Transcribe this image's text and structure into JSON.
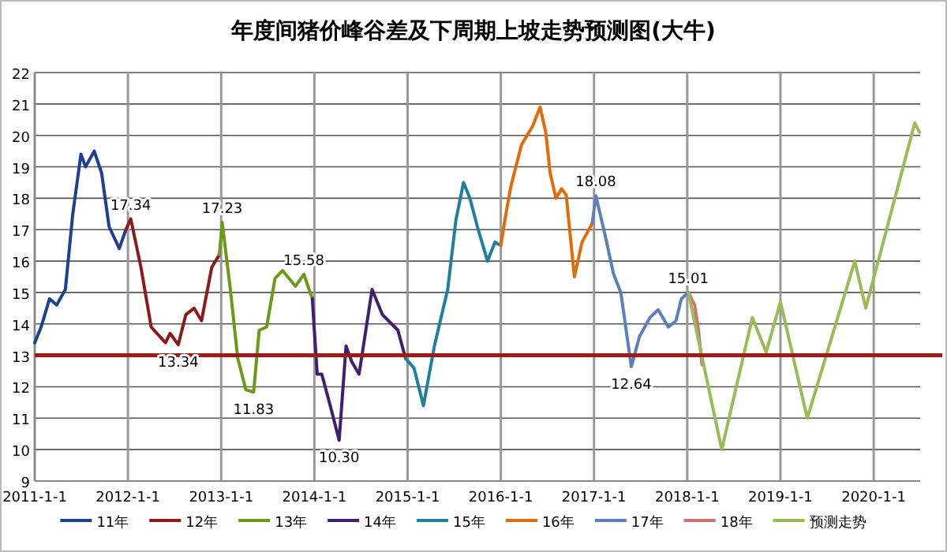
{
  "chart_data": {
    "type": "line",
    "title": "年度间猪价峰谷差及下周期上坡走势预测图(大牛)",
    "xlim": [
      "2011-01-01",
      "2020-07-01"
    ],
    "ylim": [
      9,
      22
    ],
    "xticks": [
      {
        "value": "2011-01-01",
        "label": "2011-1-1"
      },
      {
        "value": "2012-01-01",
        "label": "2012-1-1"
      },
      {
        "value": "2013-01-01",
        "label": "2013-1-1"
      },
      {
        "value": "2014-01-01",
        "label": "2014-1-1"
      },
      {
        "value": "2015-01-01",
        "label": "2015-1-1"
      },
      {
        "value": "2016-01-01",
        "label": "2016-1-1"
      },
      {
        "value": "2017-01-01",
        "label": "2017-1-1"
      },
      {
        "value": "2018-01-01",
        "label": "2018-1-1"
      },
      {
        "value": "2019-01-01",
        "label": "2019-1-1"
      },
      {
        "value": "2020-01-01",
        "label": "2020-1-1"
      }
    ],
    "yticks": [
      9,
      10,
      11,
      12,
      13,
      14,
      15,
      16,
      17,
      18,
      19,
      20,
      21,
      22
    ],
    "grid": true,
    "legend": "bottom",
    "marker": "none",
    "ref_lines": [
      {
        "axis": "y",
        "value": 13,
        "color": "#a01818"
      }
    ],
    "annotations": [
      {
        "text": "17.34",
        "x": "2012-01-12",
        "y": 17.34
      },
      {
        "text": "13.34",
        "x": "2012-07-16",
        "y": 13.34
      },
      {
        "text": "17.23",
        "x": "2013-01-05",
        "y": 17.23
      },
      {
        "text": "11.83",
        "x": "2013-05-08",
        "y": 11.83
      },
      {
        "text": "15.58",
        "x": "2013-11-21",
        "y": 15.58
      },
      {
        "text": "10.30",
        "x": "2014-04-08",
        "y": 10.3
      },
      {
        "text": "18.08",
        "x": "2017-01-08",
        "y": 18.08
      },
      {
        "text": "12.64",
        "x": "2017-05-27",
        "y": 12.64
      },
      {
        "text": "15.01",
        "x": "2018-01-05",
        "y": 15.01
      }
    ],
    "series": [
      {
        "name": "11年",
        "color": "#1f3f8f",
        "x": [
          "2011-01-01",
          "2011-01-26",
          "2011-02-28",
          "2011-03-28",
          "2011-05-01",
          "2011-05-30",
          "2011-07-01",
          "2011-07-19",
          "2011-08-22",
          "2011-09-20",
          "2011-10-19",
          "2011-11-28",
          "2011-12-24"
        ],
        "values": [
          13.4,
          13.9,
          14.8,
          14.6,
          15.1,
          17.5,
          19.4,
          19.0,
          19.5,
          18.8,
          17.1,
          16.4,
          17.0
        ]
      },
      {
        "name": "12年",
        "color": "#8b1a1a",
        "x": [
          "2011-12-24",
          "2012-01-12",
          "2012-02-21",
          "2012-04-01",
          "2012-05-27",
          "2012-06-14",
          "2012-07-16",
          "2012-08-15",
          "2012-09-16",
          "2012-10-15",
          "2012-11-24",
          "2012-12-24"
        ],
        "values": [
          17.0,
          17.34,
          15.8,
          13.9,
          13.4,
          13.7,
          13.34,
          14.3,
          14.5,
          14.1,
          15.8,
          16.2
        ]
      },
      {
        "name": "13年",
        "color": "#6b9a1a",
        "x": [
          "2012-12-24",
          "2013-01-05",
          "2013-02-06",
          "2013-03-07",
          "2013-04-08",
          "2013-05-08",
          "2013-05-30",
          "2013-06-28",
          "2013-07-31",
          "2013-08-29",
          "2013-10-19",
          "2013-11-21",
          "2013-12-24"
        ],
        "values": [
          16.2,
          17.23,
          15.1,
          12.9,
          11.9,
          11.83,
          13.8,
          13.9,
          15.45,
          15.7,
          15.2,
          15.58,
          14.8
        ]
      },
      {
        "name": "14年",
        "color": "#3f1f6f",
        "x": [
          "2013-12-24",
          "2014-01-12",
          "2014-01-30",
          "2014-03-04",
          "2014-04-08",
          "2014-05-05",
          "2014-05-27",
          "2014-06-25",
          "2014-08-15",
          "2014-09-24",
          "2014-11-24",
          "2014-12-24"
        ],
        "values": [
          14.8,
          12.4,
          12.4,
          11.4,
          10.3,
          13.3,
          12.8,
          12.4,
          15.1,
          14.3,
          13.8,
          12.9
        ]
      },
      {
        "name": "15年",
        "color": "#1f7f9f",
        "x": [
          "2014-12-24",
          "2015-01-26",
          "2015-03-04",
          "2015-04-16",
          "2015-06-07",
          "2015-07-09",
          "2015-08-08",
          "2015-09-02",
          "2015-10-01",
          "2015-11-10",
          "2015-12-09",
          "2016-01-01"
        ],
        "values": [
          12.9,
          12.6,
          11.4,
          13.3,
          15.1,
          17.3,
          18.5,
          18.0,
          17.1,
          16.0,
          16.6,
          16.5
        ]
      },
      {
        "name": "16年",
        "color": "#e36c0a",
        "x": [
          "2016-01-01",
          "2016-01-23",
          "2016-02-10",
          "2016-03-22",
          "2016-05-05",
          "2016-06-03",
          "2016-06-25",
          "2016-07-12",
          "2016-08-04",
          "2016-08-26",
          "2016-09-13",
          "2016-10-15",
          "2016-11-14",
          "2016-12-24"
        ],
        "values": [
          16.5,
          17.6,
          18.4,
          19.7,
          20.3,
          20.9,
          20.1,
          18.8,
          18.0,
          18.3,
          18.1,
          15.5,
          16.6,
          17.2
        ]
      },
      {
        "name": "17年",
        "color": "#5b7fbf",
        "x": [
          "2016-12-24",
          "2017-01-08",
          "2017-02-14",
          "2017-03-18",
          "2017-04-16",
          "2017-05-27",
          "2017-06-28",
          "2017-08-08",
          "2017-09-09",
          "2017-10-19",
          "2017-11-18",
          "2017-12-09",
          "2018-01-05"
        ],
        "values": [
          17.2,
          18.08,
          16.8,
          15.6,
          15.0,
          12.64,
          13.6,
          14.2,
          14.45,
          13.9,
          14.1,
          14.8,
          15.0
        ]
      },
      {
        "name": "18年",
        "color": "#d07070",
        "x": [
          "2018-01-05",
          "2018-01-30",
          "2018-02-14",
          "2018-02-25",
          "2018-02-28"
        ],
        "values": [
          15.01,
          14.6,
          13.8,
          12.9,
          12.7
        ]
      },
      {
        "name": "预测走势",
        "color": "#9bbb59",
        "x": [
          "2018-01-05",
          "2018-05-16",
          "2018-09-13",
          "2018-11-06",
          "2019-01-01",
          "2019-04-16",
          "2019-10-19",
          "2019-12-01",
          "2020-06-10",
          "2020-06-28"
        ],
        "values": [
          15.01,
          10.0,
          14.2,
          13.1,
          14.7,
          11.0,
          16.0,
          14.5,
          20.4,
          20.1
        ]
      }
    ]
  }
}
